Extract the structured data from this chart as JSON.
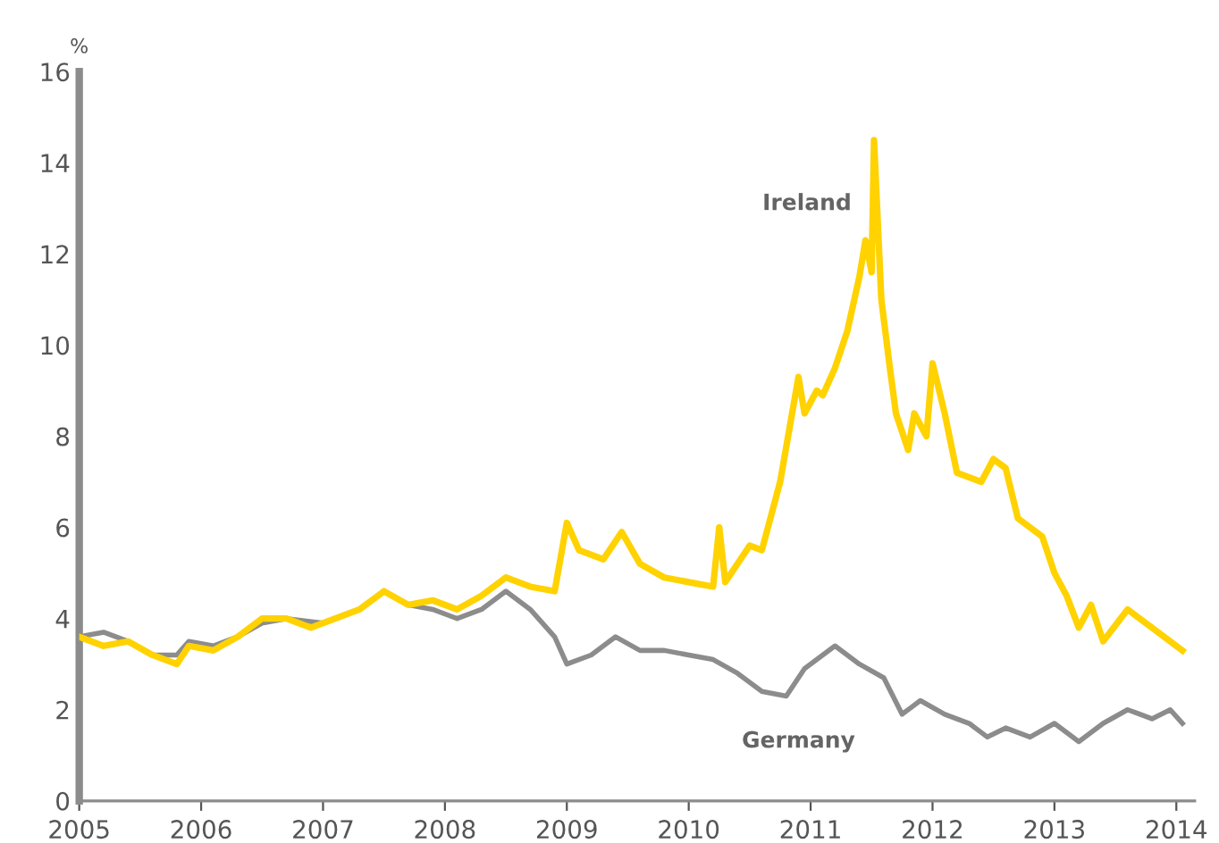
{
  "chart_data": {
    "type": "line",
    "ylabel": "%",
    "xlim": [
      2005,
      2014.15
    ],
    "xticks": [
      2005,
      2006,
      2007,
      2008,
      2009,
      2010,
      2011,
      2012,
      2013,
      2014
    ],
    "ylim": [
      0,
      16
    ],
    "yticks": [
      0,
      2,
      4,
      6,
      8,
      10,
      12,
      14,
      16
    ],
    "grid": false,
    "legend": false,
    "marker": "none",
    "line_style": "solid",
    "series": [
      {
        "name": "Ireland",
        "color": "#ffd200",
        "x": [
          2005.0,
          2005.2,
          2005.4,
          2005.6,
          2005.8,
          2005.9,
          2006.1,
          2006.3,
          2006.5,
          2006.7,
          2006.9,
          2007.1,
          2007.3,
          2007.5,
          2007.7,
          2007.9,
          2008.1,
          2008.3,
          2008.5,
          2008.7,
          2008.9,
          2009.0,
          2009.1,
          2009.3,
          2009.45,
          2009.6,
          2009.8,
          2010.0,
          2010.2,
          2010.25,
          2010.3,
          2010.5,
          2010.6,
          2010.75,
          2010.9,
          2010.95,
          2011.05,
          2011.1,
          2011.2,
          2011.3,
          2011.4,
          2011.45,
          2011.5,
          2011.52,
          2011.58,
          2011.65,
          2011.7,
          2011.8,
          2011.85,
          2011.95,
          2012.0,
          2012.1,
          2012.2,
          2012.4,
          2012.5,
          2012.6,
          2012.7,
          2012.9,
          2013.0,
          2013.1,
          2013.2,
          2013.3,
          2013.4,
          2013.6,
          2013.8,
          2014.0,
          2014.05
        ],
        "values": [
          3.6,
          3.4,
          3.5,
          3.2,
          3.0,
          3.4,
          3.3,
          3.6,
          4.0,
          4.0,
          3.8,
          4.0,
          4.2,
          4.6,
          4.3,
          4.4,
          4.2,
          4.5,
          4.9,
          4.7,
          4.6,
          6.1,
          5.5,
          5.3,
          5.9,
          5.2,
          4.9,
          4.8,
          4.7,
          6.0,
          4.8,
          5.6,
          5.5,
          7.0,
          9.3,
          8.5,
          9.0,
          8.9,
          9.5,
          10.3,
          11.5,
          12.3,
          11.6,
          14.5,
          11.0,
          9.5,
          8.5,
          7.7,
          8.5,
          8.0,
          9.6,
          8.5,
          7.2,
          7.0,
          7.5,
          7.3,
          6.2,
          5.8,
          5.0,
          4.5,
          3.8,
          4.3,
          3.5,
          4.2,
          3.8,
          3.4,
          3.3
        ]
      },
      {
        "name": "Germany",
        "color": "#8c8c8c",
        "x": [
          2005.0,
          2005.2,
          2005.4,
          2005.6,
          2005.8,
          2005.9,
          2006.1,
          2006.3,
          2006.5,
          2006.7,
          2007.0,
          2007.3,
          2007.5,
          2007.7,
          2007.9,
          2008.1,
          2008.3,
          2008.5,
          2008.7,
          2008.9,
          2009.0,
          2009.2,
          2009.4,
          2009.6,
          2009.8,
          2010.0,
          2010.2,
          2010.4,
          2010.6,
          2010.8,
          2010.95,
          2011.2,
          2011.4,
          2011.6,
          2011.75,
          2011.9,
          2012.1,
          2012.3,
          2012.45,
          2012.6,
          2012.8,
          2013.0,
          2013.2,
          2013.4,
          2013.6,
          2013.8,
          2013.95,
          2014.05
        ],
        "values": [
          3.6,
          3.7,
          3.5,
          3.2,
          3.2,
          3.5,
          3.4,
          3.6,
          3.9,
          4.0,
          3.9,
          null,
          null,
          4.3,
          4.2,
          4.0,
          4.2,
          4.6,
          4.2,
          3.6,
          3.0,
          3.2,
          3.6,
          3.3,
          3.3,
          3.2,
          3.1,
          2.8,
          2.4,
          2.3,
          2.9,
          3.4,
          3.0,
          2.7,
          1.9,
          2.2,
          1.9,
          1.7,
          1.4,
          1.6,
          1.4,
          1.7,
          1.3,
          1.7,
          2.0,
          1.8,
          2.0,
          1.7
        ]
      }
    ]
  }
}
